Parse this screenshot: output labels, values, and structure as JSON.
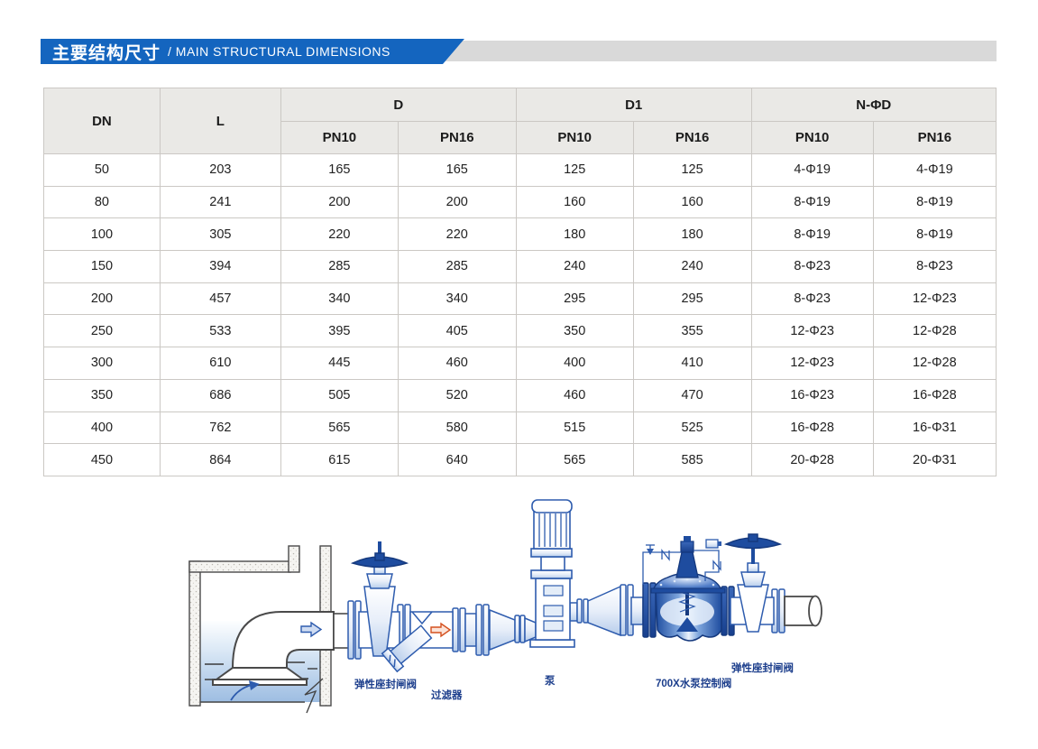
{
  "banner": {
    "title_zh": "主要结构尺寸",
    "title_en": "/ MAIN STRUCTURAL DIMENSIONS"
  },
  "table": {
    "headers": {
      "dn": "DN",
      "l": "L",
      "d": "D",
      "d1": "D1",
      "nphid": "N-ΦD",
      "pn10": "PN10",
      "pn16": "PN16"
    },
    "rows": [
      [
        "50",
        "203",
        "165",
        "165",
        "125",
        "125",
        "4-Φ19",
        "4-Φ19"
      ],
      [
        "80",
        "241",
        "200",
        "200",
        "160",
        "160",
        "8-Φ19",
        "8-Φ19"
      ],
      [
        "100",
        "305",
        "220",
        "220",
        "180",
        "180",
        "8-Φ19",
        "8-Φ19"
      ],
      [
        "150",
        "394",
        "285",
        "285",
        "240",
        "240",
        "8-Φ23",
        "8-Φ23"
      ],
      [
        "200",
        "457",
        "340",
        "340",
        "295",
        "295",
        "8-Φ23",
        "12-Φ23"
      ],
      [
        "250",
        "533",
        "395",
        "405",
        "350",
        "355",
        "12-Φ23",
        "12-Φ28"
      ],
      [
        "300",
        "610",
        "445",
        "460",
        "400",
        "410",
        "12-Φ23",
        "12-Φ28"
      ],
      [
        "350",
        "686",
        "505",
        "520",
        "460",
        "470",
        "16-Φ23",
        "16-Φ28"
      ],
      [
        "400",
        "762",
        "565",
        "580",
        "515",
        "525",
        "16-Φ28",
        "16-Φ31"
      ],
      [
        "450",
        "864",
        "615",
        "640",
        "565",
        "585",
        "20-Φ28",
        "20-Φ31"
      ]
    ]
  },
  "diagram": {
    "labels": {
      "gate_valve_left": "弹性座封闸阀",
      "strainer": "过滤器",
      "pump": "泵",
      "control_valve": "700X水泵控制阀",
      "gate_valve_right": "弹性座封闸阀"
    }
  },
  "colors": {
    "banner_blue": "#1465bf",
    "banner_gray": "#d9d9d9",
    "header_bg": "#eae9e6",
    "diagram_blue": "#2e5cae",
    "diagram_dark_blue": "#1e4c9f",
    "arrow_red": "#d4501e"
  }
}
